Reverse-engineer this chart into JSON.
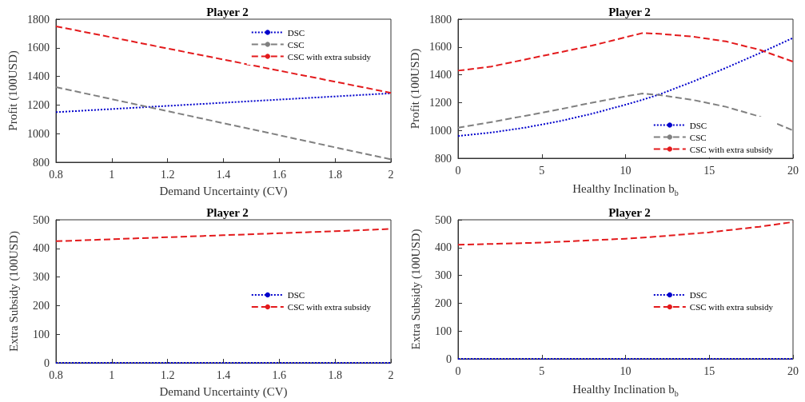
{
  "chart_data": [
    {
      "type": "line",
      "title": "Player 2",
      "xlabel": "Demand Uncertainty (CV)",
      "ylabel": "Profit (100USD)",
      "x": [
        0.8,
        1,
        1.2,
        1.4,
        1.6,
        1.8,
        2
      ],
      "xlim": [
        0.8,
        2
      ],
      "xticks": [
        0.8,
        1,
        1.2,
        1.4,
        1.6,
        1.8,
        2
      ],
      "ylim": [
        800,
        1800
      ],
      "yticks": [
        800,
        1000,
        1200,
        1400,
        1600,
        1800
      ],
      "grid": false,
      "legend": "top right",
      "series": [
        {
          "name": "DSC",
          "color": "#0000cc",
          "line_style": "dotted",
          "values": [
            1150,
            1172,
            1194,
            1216,
            1238,
            1260,
            1282
          ]
        },
        {
          "name": "CSC",
          "color": "#808080",
          "line_style": "dashed",
          "values": [
            1325,
            1241,
            1157,
            1073,
            989,
            904,
            820
          ]
        },
        {
          "name": "CSC with extra subsidy",
          "color": "#e31a1c",
          "line_style": "dashed",
          "values": [
            1750,
            1673,
            1595,
            1518,
            1440,
            1363,
            1285
          ]
        }
      ]
    },
    {
      "type": "line",
      "title": "Player 2",
      "xlabel": "Healthy Inclination b$_{b}$",
      "ylabel": "Profit (100USD)",
      "x": [
        0,
        2,
        4,
        6,
        8,
        10,
        11,
        12,
        14,
        16,
        18,
        20
      ],
      "xlim": [
        0,
        20
      ],
      "xticks": [
        0,
        5,
        10,
        15,
        20
      ],
      "ylim": [
        800,
        1800
      ],
      "yticks": [
        800,
        1000,
        1200,
        1400,
        1600,
        1800
      ],
      "grid": false,
      "legend": "bottom right",
      "series": [
        {
          "name": "DSC",
          "color": "#0000cc",
          "line_style": "dotted",
          "values": [
            960,
            985,
            1020,
            1065,
            1120,
            1185,
            1220,
            1258,
            1350,
            1450,
            1555,
            1665
          ]
        },
        {
          "name": "CSC",
          "color": "#808080",
          "line_style": "dashed",
          "values": [
            1020,
            1060,
            1105,
            1150,
            1200,
            1245,
            1265,
            1255,
            1220,
            1170,
            1100,
            1000
          ]
        },
        {
          "name": "CSC with extra subsidy",
          "color": "#e31a1c",
          "line_style": "dashed",
          "values": [
            1430,
            1460,
            1510,
            1560,
            1610,
            1670,
            1700,
            1695,
            1675,
            1640,
            1580,
            1495
          ]
        }
      ]
    },
    {
      "type": "line",
      "title": "Player 2",
      "xlabel": "Demand Uncertainty (CV)",
      "ylabel": "Extra Subsidy (100USD)",
      "x": [
        0.8,
        1,
        1.2,
        1.4,
        1.6,
        1.8,
        2
      ],
      "xlim": [
        0.8,
        2
      ],
      "xticks": [
        0.8,
        1,
        1.2,
        1.4,
        1.6,
        1.8,
        2
      ],
      "ylim": [
        0,
        500
      ],
      "yticks": [
        0,
        100,
        200,
        300,
        400,
        500
      ],
      "grid": false,
      "legend": "right",
      "series": [
        {
          "name": "DSC",
          "color": "#0000cc",
          "line_style": "dotted",
          "values": [
            0,
            0,
            0,
            0,
            0,
            0,
            0
          ]
        },
        {
          "name": "CSC with extra subsidy",
          "color": "#e31a1c",
          "line_style": "dashed",
          "values": [
            425,
            432,
            439,
            446,
            453,
            460,
            468
          ]
        }
      ]
    },
    {
      "type": "line",
      "title": "Player 2",
      "xlabel": "Healthy Inclination b$_{b}$",
      "ylabel": "Extra Subsidy (100USD)",
      "x": [
        0,
        5,
        10,
        12,
        15,
        18,
        20
      ],
      "xlim": [
        0,
        20
      ],
      "xticks": [
        0,
        5,
        10,
        15,
        20
      ],
      "ylim": [
        0,
        500
      ],
      "yticks": [
        0,
        100,
        200,
        300,
        400,
        500
      ],
      "grid": false,
      "legend": "right",
      "series": [
        {
          "name": "DSC",
          "color": "#0000cc",
          "line_style": "dotted",
          "values": [
            0,
            0,
            0,
            0,
            0,
            0,
            0
          ]
        },
        {
          "name": "CSC with extra subsidy",
          "color": "#e31a1c",
          "line_style": "dashed",
          "values": [
            410,
            418,
            432,
            440,
            455,
            475,
            492
          ]
        }
      ]
    }
  ]
}
